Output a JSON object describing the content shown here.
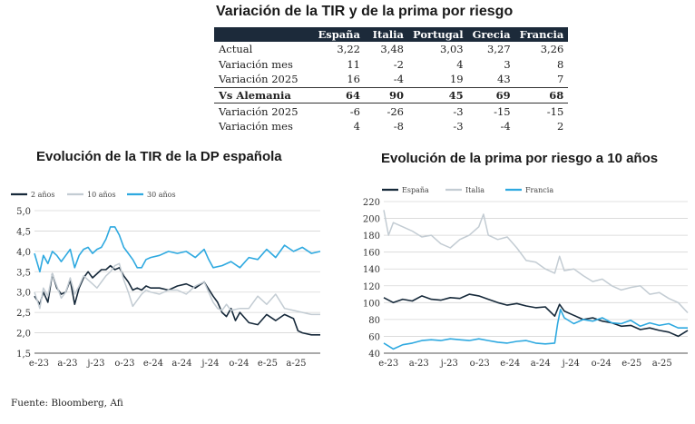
{
  "table": {
    "title": "Variación de la TIR y de la prima por riesgo",
    "headers": [
      "",
      "España",
      "Italia",
      "Portugal",
      "Grecia",
      "Francia"
    ],
    "rows": [
      {
        "label": "Actual",
        "values": [
          "3,22",
          "3,48",
          "3,03",
          "3,27",
          "3,26"
        ],
        "bold": false
      },
      {
        "label": "Variación mes",
        "values": [
          "11",
          "-2",
          "4",
          "3",
          "8"
        ],
        "bold": false
      },
      {
        "label": "Variación 2025",
        "values": [
          "16",
          "-4",
          "19",
          "43",
          "7"
        ],
        "bold": false
      },
      {
        "label": "Vs Alemania",
        "values": [
          "64",
          "90",
          "45",
          "69",
          "68"
        ],
        "bold": true
      },
      {
        "label": "Variación 2025",
        "values": [
          "-6",
          "-26",
          "-3",
          "-15",
          "-15"
        ],
        "bold": false
      },
      {
        "label": "Variación mes",
        "values": [
          "4",
          "-8",
          "-3",
          "-4",
          "2"
        ],
        "bold": false
      }
    ]
  },
  "chart_data": [
    {
      "type": "line",
      "title": "Evolución de la TIR de la DP española",
      "xlabel": "",
      "ylabel": "",
      "x_ticks": [
        "e-23",
        "a-23",
        "j-23",
        "o-23",
        "e-24",
        "a-24",
        "j-24",
        "o-24",
        "e-25",
        "a-25"
      ],
      "x_range": [
        0,
        32
      ],
      "ylim": [
        1.5,
        5.0
      ],
      "y_ticks": [
        "5,0",
        "4,5",
        "4,0",
        "3,5",
        "3,0",
        "2,5",
        "2,0",
        "1,5"
      ],
      "grid": true,
      "legend_position": "top-left",
      "series": [
        {
          "name": "2 años",
          "color": "#16293a",
          "width": 1.6,
          "x": [
            0,
            0.6,
            1,
            1.5,
            2,
            2.5,
            3,
            3.5,
            4,
            4.5,
            5,
            5.5,
            6,
            6.5,
            7,
            7.5,
            8,
            8.5,
            9,
            9.5,
            10,
            10.5,
            11,
            11.5,
            12,
            12.5,
            13,
            14,
            15,
            16,
            17,
            18,
            19,
            20,
            20.5,
            21,
            21.5,
            22,
            22.5,
            23,
            24,
            25,
            26,
            27,
            28,
            29,
            29.5,
            30,
            31,
            32
          ],
          "y": [
            2.9,
            2.7,
            3.0,
            2.75,
            3.45,
            3.1,
            2.95,
            3.0,
            3.3,
            2.7,
            3.1,
            3.35,
            3.5,
            3.35,
            3.45,
            3.55,
            3.55,
            3.65,
            3.55,
            3.6,
            3.4,
            3.25,
            3.05,
            3.1,
            3.05,
            3.15,
            3.1,
            3.1,
            3.05,
            3.15,
            3.2,
            3.1,
            3.25,
            2.9,
            2.75,
            2.5,
            2.4,
            2.6,
            2.3,
            2.5,
            2.25,
            2.2,
            2.45,
            2.3,
            2.45,
            2.35,
            2.05,
            2.0,
            1.95,
            1.95
          ]
        },
        {
          "name": "10 años",
          "color": "#c3ccd3",
          "width": 1.5,
          "x": [
            0,
            0.6,
            1,
            1.5,
            2,
            2.5,
            3,
            3.5,
            4,
            4.5,
            5,
            5.5,
            6,
            6.5,
            7,
            7.5,
            8,
            8.5,
            9,
            9.5,
            10,
            10.5,
            11,
            11.5,
            12,
            12.5,
            13,
            14,
            15,
            16,
            17,
            18,
            19,
            20,
            20.5,
            21,
            21.5,
            22,
            23,
            24,
            25,
            26,
            27,
            28,
            29,
            30,
            31,
            32
          ],
          "y": [
            3.0,
            2.6,
            3.1,
            2.9,
            3.45,
            3.15,
            2.85,
            3.0,
            3.35,
            2.95,
            3.15,
            3.4,
            3.3,
            3.2,
            3.1,
            3.25,
            3.4,
            3.5,
            3.65,
            3.7,
            3.3,
            3.0,
            2.65,
            2.8,
            2.95,
            3.05,
            3.0,
            2.95,
            3.05,
            3.05,
            2.95,
            3.15,
            3.25,
            2.75,
            2.6,
            2.55,
            2.7,
            2.55,
            2.6,
            2.6,
            2.9,
            2.7,
            2.95,
            2.6,
            2.55,
            2.5,
            2.45,
            2.45
          ]
        },
        {
          "name": "30 años",
          "color": "#2ea9e0",
          "width": 1.6,
          "x": [
            0,
            0.6,
            1,
            1.5,
            2,
            2.5,
            3,
            3.5,
            4,
            4.5,
            5,
            5.5,
            6,
            6.5,
            7,
            7.5,
            8,
            8.5,
            9,
            9.5,
            10,
            10.5,
            11,
            11.5,
            12,
            12.5,
            13,
            14,
            15,
            16,
            17,
            18,
            19,
            19.5,
            20,
            21,
            22,
            23,
            24,
            25,
            26,
            27,
            28,
            29,
            30,
            31,
            32
          ],
          "y": [
            3.95,
            3.5,
            3.9,
            3.7,
            4.0,
            3.9,
            3.75,
            3.9,
            4.05,
            3.6,
            3.9,
            4.05,
            4.1,
            3.95,
            4.05,
            4.1,
            4.3,
            4.6,
            4.6,
            4.4,
            4.1,
            3.95,
            3.8,
            3.6,
            3.6,
            3.8,
            3.85,
            3.9,
            4.0,
            3.95,
            4.0,
            3.85,
            4.05,
            3.8,
            3.6,
            3.65,
            3.75,
            3.6,
            3.85,
            3.8,
            4.05,
            3.85,
            4.15,
            4.0,
            4.1,
            3.95,
            4.0
          ]
        }
      ]
    },
    {
      "type": "line",
      "title": "Evolución de la prima por riesgo a 10 años",
      "xlabel": "",
      "ylabel": "",
      "x_ticks": [
        "e-23",
        "a-23",
        "j-23",
        "o-23",
        "e-24",
        "a-24",
        "j-24",
        "o-24",
        "e-25",
        "a-25"
      ],
      "x_range": [
        0,
        32
      ],
      "ylim": [
        40,
        220
      ],
      "y_ticks": [
        "220",
        "200",
        "180",
        "160",
        "140",
        "120",
        "100",
        "80",
        "60",
        "40"
      ],
      "grid": true,
      "legend_position": "top-left",
      "series": [
        {
          "name": "España",
          "color": "#16293a",
          "width": 1.6,
          "x": [
            0,
            1,
            2,
            3,
            4,
            5,
            6,
            7,
            8,
            9,
            10,
            11,
            12,
            13,
            14,
            15,
            16,
            17,
            18,
            18.5,
            19,
            20,
            21,
            22,
            23,
            24,
            25,
            26,
            27,
            28,
            29,
            30,
            31,
            32
          ],
          "y": [
            106,
            100,
            104,
            102,
            108,
            104,
            103,
            106,
            105,
            110,
            108,
            104,
            100,
            97,
            99,
            96,
            94,
            95,
            84,
            98,
            90,
            85,
            80,
            82,
            78,
            76,
            72,
            73,
            68,
            70,
            67,
            65,
            60,
            67
          ]
        },
        {
          "name": "Italia",
          "color": "#c3ccd3",
          "width": 1.5,
          "x": [
            0,
            0.5,
            1,
            2,
            3,
            4,
            5,
            6,
            7,
            8,
            9,
            10,
            10.5,
            11,
            12,
            13,
            14,
            15,
            16,
            17,
            18,
            18.5,
            19,
            20,
            21,
            22,
            23,
            24,
            25,
            26,
            27,
            28,
            29,
            30,
            31,
            32
          ],
          "y": [
            210,
            180,
            195,
            190,
            185,
            178,
            180,
            170,
            165,
            175,
            180,
            190,
            205,
            180,
            175,
            178,
            165,
            150,
            148,
            140,
            135,
            155,
            138,
            140,
            132,
            125,
            128,
            120,
            115,
            118,
            120,
            110,
            112,
            105,
            100,
            88
          ]
        },
        {
          "name": "Francia",
          "color": "#2ea9e0",
          "width": 1.6,
          "x": [
            0,
            1,
            2,
            3,
            4,
            5,
            6,
            7,
            8,
            9,
            10,
            11,
            12,
            13,
            14,
            15,
            16,
            17,
            18,
            18.3,
            18.6,
            19,
            20,
            21,
            22,
            23,
            24,
            25,
            26,
            27,
            28,
            29,
            30,
            31,
            32
          ],
          "y": [
            52,
            45,
            50,
            52,
            55,
            56,
            55,
            57,
            56,
            55,
            57,
            55,
            53,
            52,
            54,
            55,
            52,
            51,
            52,
            75,
            92,
            82,
            75,
            80,
            78,
            82,
            76,
            75,
            79,
            72,
            76,
            73,
            75,
            70,
            70
          ]
        }
      ]
    }
  ],
  "footer": {
    "source": "Fuente: Bloomberg, Afi"
  }
}
